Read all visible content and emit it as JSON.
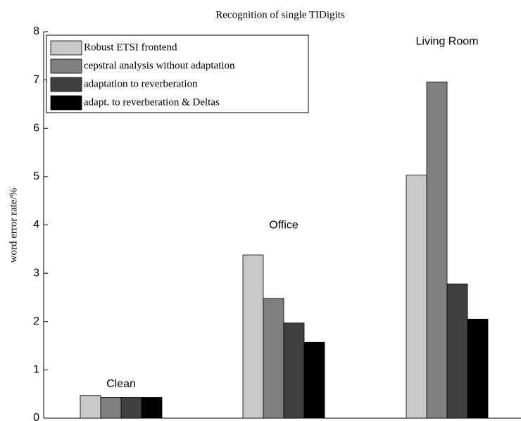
{
  "chart_data": {
    "type": "bar",
    "title": "Recognition of single TIDigits",
    "y_label": "word error rate/%",
    "categories": [
      "Clean",
      "Office",
      "Living Room"
    ],
    "series": [
      {
        "name": "Robust ETSI frontend",
        "color": "#c8c8c8",
        "values": [
          0.47,
          3.38,
          5.03
        ]
      },
      {
        "name": "cepstral analysis without adaptation",
        "color": "#808080",
        "values": [
          0.43,
          2.48,
          6.96
        ]
      },
      {
        "name": "adaptation to reverberation",
        "color": "#404040",
        "values": [
          0.43,
          1.97,
          2.78
        ]
      },
      {
        "name": "adapt. to reverberation & Deltas",
        "color": "#000000",
        "values": [
          0.43,
          1.57,
          2.05
        ]
      }
    ],
    "ylim": [
      0,
      8
    ],
    "yticks": [
      0,
      1,
      2,
      3,
      4,
      5,
      6,
      7,
      8
    ],
    "legend": "upper-left"
  }
}
